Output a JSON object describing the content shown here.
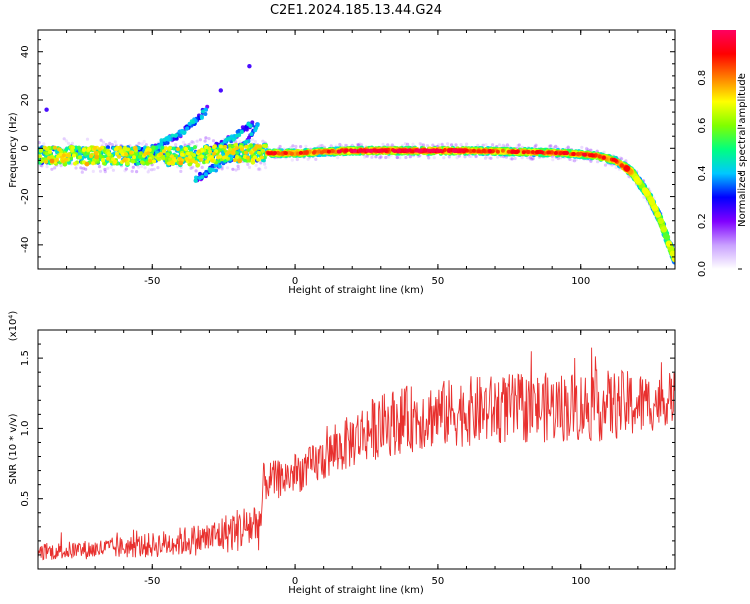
{
  "figure_title": "C2E1.2024.185.13.44.G24",
  "chart_data": [
    {
      "type": "heatmap",
      "title": "C2E1.2024.185.13.44.G24",
      "xlabel": "Height of straight line (km)",
      "ylabel": "Frequency (Hz)",
      "xlim": [
        -90,
        133
      ],
      "ylim": [
        -50,
        49
      ],
      "xticks": [
        -50,
        0,
        50,
        100
      ],
      "yticks": [
        -40,
        -20,
        0,
        20,
        40
      ],
      "colorbar": {
        "label": "Normalized spectral amplitude",
        "range": [
          0,
          1
        ],
        "ticks": [
          0.0,
          0.2,
          0.4,
          0.6,
          0.8
        ],
        "colors": [
          "#ffffff",
          "#c9a0ff",
          "#8000ff",
          "#0000ff",
          "#00c8ff",
          "#00ff80",
          "#80ff00",
          "#ffff00",
          "#ff8000",
          "#ff0000",
          "#ff0060"
        ]
      },
      "main_track": {
        "x": [
          -90,
          -75,
          -60,
          -45,
          -30,
          -20,
          -10,
          0,
          20,
          40,
          60,
          80,
          95,
          105,
          112,
          118,
          124,
          128,
          131,
          133
        ],
        "y": [
          -3,
          -3,
          -3,
          -3,
          -2.5,
          -2,
          -2,
          -2,
          -1,
          -1,
          -1,
          -1.5,
          -2,
          -3,
          -5,
          -10,
          -20,
          -30,
          -40,
          -46
        ]
      },
      "secondary_tracks": [
        {
          "x": [
            -60,
            -50,
            -40,
            -35,
            -31
          ],
          "y": [
            -4,
            0,
            6,
            11,
            16
          ]
        },
        {
          "x": [
            -45,
            -35,
            -25,
            -15
          ],
          "y": [
            -6,
            -3,
            2,
            10
          ]
        },
        {
          "x": [
            -35,
            -28,
            -20,
            -13
          ],
          "y": [
            -13,
            -8,
            -2,
            10
          ]
        }
      ],
      "outlier_points": [
        {
          "x": -16,
          "y": 34
        },
        {
          "x": -26,
          "y": 24
        },
        {
          "x": -87,
          "y": 16
        }
      ]
    },
    {
      "type": "line",
      "xlabel": "Height of straight line (km)",
      "ylabel": "SNR (10 * v/v)",
      "y_multiplier": "(x10⁴)",
      "xlim": [
        -90,
        133
      ],
      "ylim": [
        0,
        1.7
      ],
      "xticks": [
        -50,
        0,
        50,
        100
      ],
      "yticks": [
        0.5,
        1.0,
        1.5
      ],
      "ytick_labels": [
        "0.5",
        "1.0",
        "1.5"
      ],
      "color": "#e8302e",
      "envelope": {
        "x": [
          -90,
          -70,
          -50,
          -30,
          -20,
          -12,
          -11,
          -5,
          5,
          15,
          25,
          35,
          50,
          60,
          75,
          90,
          105,
          120,
          133
        ],
        "mean": [
          0.12,
          0.14,
          0.17,
          0.22,
          0.28,
          0.33,
          0.62,
          0.64,
          0.72,
          0.85,
          0.98,
          1.05,
          1.1,
          1.12,
          1.14,
          1.15,
          1.16,
          1.17,
          1.2
        ],
        "amplitude": [
          0.06,
          0.07,
          0.09,
          0.12,
          0.16,
          0.2,
          0.14,
          0.14,
          0.15,
          0.18,
          0.22,
          0.24,
          0.24,
          0.25,
          0.25,
          0.25,
          0.26,
          0.24,
          0.15
        ]
      }
    }
  ]
}
